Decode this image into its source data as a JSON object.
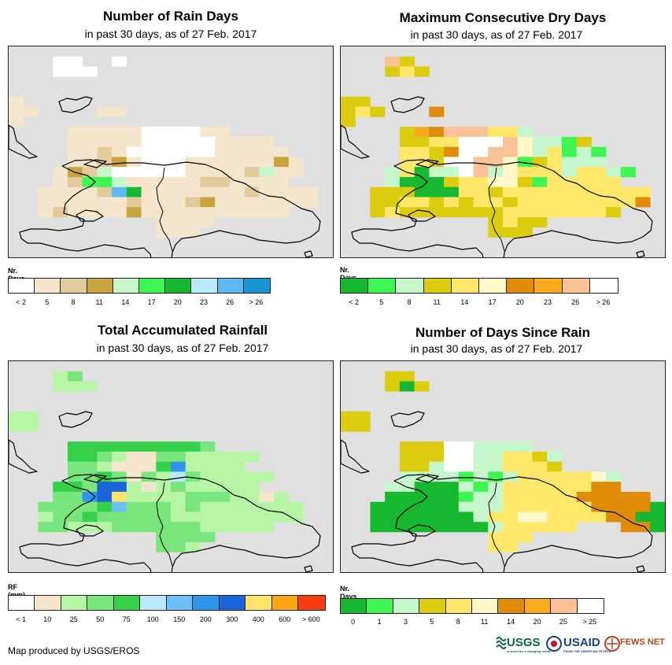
{
  "credit": "Map produced by USGS/EROS",
  "logos": {
    "usgs": "USGS",
    "usgs_tag": "science for a changing world",
    "usaid": "USAID",
    "usaid_tag": "FROM THE AMERICAN PEOPLE",
    "fews": "FEWS NET"
  },
  "panels": [
    {
      "key": "rain_days",
      "title": "Number of Rain Days",
      "subtitle": "in past 30 days, as of 27 Feb. 2017",
      "legend_title": "Nr. Days",
      "legend_colors": [
        "#ffffff",
        "#f5e5cc",
        "#e2cb9b",
        "#c9a33e",
        "#c6f6cc",
        "#3ef551",
        "#16b830",
        "#b9e9fa",
        "#5cb8f2",
        "#1b94d4"
      ],
      "legend_labels": [
        "< 2",
        "5",
        "8",
        "11",
        "14",
        "17",
        "20",
        "23",
        "26",
        "> 26"
      ],
      "palette": [
        "#ffffff",
        "#f5e5cc",
        "#e2cb9b",
        "#c9a33e",
        "#c6f6cc",
        "#3ef551",
        "#16b830",
        "#b9e9fa",
        "#5cb8f2",
        "#1b94d4"
      ],
      "grid": [
        "......................",
        "...00..0..............",
        "...000................",
        "......................",
        "......................",
        "1.....................",
        "11....11..............",
        "1.....................",
        "....11111000011.......",
        "....11111000001111....",
        "....112100000011111...",
        "....1123100011111131..",
        "...13240000011112411..",
        "...1255411111221111...",
        "..1111286111111121111.",
        "..1111112111231111111.",
        "..12111131111111111...",
        "..........1111........",
        "..........111.........",
        "......................",
        "......................"
      ]
    },
    {
      "key": "dry_days",
      "title": "Maximum Consecutive Dry Days",
      "subtitle": "in past 30 days, as of 27 Feb. 2017",
      "legend_title": "Nr. Days",
      "legend_colors": [
        "#16b830",
        "#3ef551",
        "#c6f6cc",
        "#dccc10",
        "#ffe869",
        "#fff9c9",
        "#e08c0a",
        "#fbaa1e",
        "#fbc297",
        "#ffffff"
      ],
      "legend_labels": [
        "< 2",
        "5",
        "8",
        "11",
        "14",
        "17",
        "20",
        "23",
        "26",
        "> 26"
      ],
      "palette": [
        "#16b830",
        "#3ef551",
        "#c6f6cc",
        "#dccc10",
        "#ffe869",
        "#fff9c9",
        "#e08c0a",
        "#fbaa1e",
        "#fbc297",
        "#ffffff"
      ],
      "grid": [
        "......................",
        "...83.................",
        "...343................",
        "......................",
        "......................",
        "33....................",
        "343...6...............",
        "3.....................",
        "....376888442.........",
        "....3344999852213.....",
        "....44369988524121....",
        "....44399885134222....",
        "...24022982544424421..",
        "...2000344553144444...",
        "..3330004434444444444.",
        "..3344343443444444446.",
        "..34333333344444443...",
        "..........3433........",
        "..........333.........",
        "......................",
        "......................"
      ]
    },
    {
      "key": "total_rainfall",
      "title": "Total Accumulated Rainfall",
      "subtitle": "in past 30 days, as of 27 Feb. 2017",
      "legend_title": "RF (mm)",
      "legend_colors": [
        "#ffffff",
        "#f5e5cc",
        "#b6f5a6",
        "#79e57d",
        "#36cf49",
        "#b9e9fa",
        "#6cbff6",
        "#2e94ec",
        "#1965d9",
        "#ffe46c",
        "#fba512",
        "#fb3b12"
      ],
      "legend_labels": [
        "< 1",
        "10",
        "25",
        "50",
        "75",
        "100",
        "150",
        "200",
        "300",
        "400",
        "600",
        "> 600"
      ],
      "palette": [
        "#ffffff",
        "#f5e5cc",
        "#b6f5a6",
        "#79e57d",
        "#36cf49",
        "#b9e9fa",
        "#6cbff6",
        "#2e94ec",
        "#1965d9",
        "#ffe46c",
        "#fba512",
        "#fb3b12"
      ],
      "grid": [
        "......................",
        "...23.................",
        "...222................",
        "......................",
        "......................",
        "22....................",
        "22....................",
        "......................",
        "....4444444443........",
        "....4432113322222.....",
        "....332111472222......",
        "....33431325322222....",
        "...44388212322222.....",
        "...3378922223332212...",
        "..333346333232222222..",
        "..233433333222222222..",
        "..3322233333322222....",
        "..........3333........",
        "..........332.........",
        "......................",
        "......................"
      ]
    },
    {
      "key": "days_since_rain",
      "title": "Number of Days Since Rain",
      "subtitle": "in past 30 days, as of 27 Feb. 2017",
      "legend_title": "Nr. Days",
      "legend_colors": [
        "#16b830",
        "#3ef551",
        "#c6f6cc",
        "#dccc10",
        "#ffe869",
        "#fff9c9",
        "#e08c0a",
        "#fbaa1e",
        "#fbc297",
        "#ffffff"
      ],
      "legend_labels": [
        "0",
        "1",
        "3",
        "5",
        "8",
        "11",
        "14",
        "20",
        "25",
        "> 25"
      ],
      "palette": [
        "#16b830",
        "#3ef551",
        "#c6f6cc",
        "#dccc10",
        "#ffe869",
        "#fff9c9",
        "#e08c0a",
        "#fbaa1e",
        "#fbc297",
        "#ffffff"
      ],
      "grid": [
        "......................",
        "...33.................",
        "...303................",
        "......................",
        "......................",
        "33....................",
        "33....................",
        "......................",
        "....333992222.........",
        "....33399224432.......",
        "....33299224443.......",
        "....222212124444452...",
        "...2200021244444466...",
        "...000001224444466666.",
        "..00000022244444466660",
        "..00000002445544446600",
        "..00000000244444...660",
        "..........444.........",
        "..........44..........",
        "......................",
        "......................"
      ]
    }
  ]
}
